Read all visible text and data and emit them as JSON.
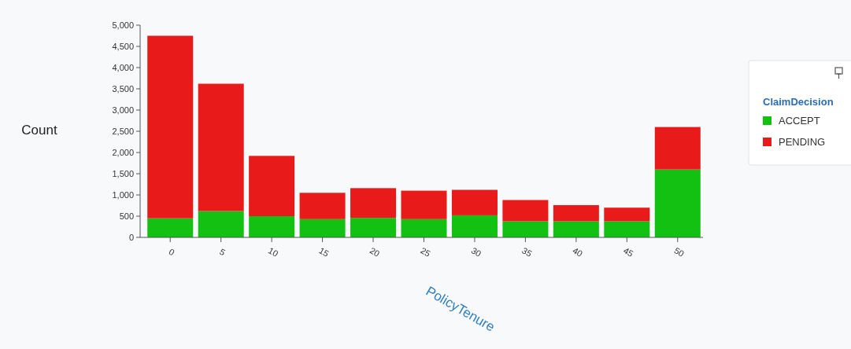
{
  "chart_data": {
    "type": "bar",
    "stacked": true,
    "xlabel": "PolicyTenure",
    "ylabel": "Count",
    "legend_title": "ClaimDecision",
    "legend": "right",
    "categories": [
      "0",
      "5",
      "10",
      "15",
      "20",
      "25",
      "30",
      "35",
      "40",
      "45",
      "50"
    ],
    "series": [
      {
        "name": "ACCEPT",
        "color": "#13c113",
        "values": [
          450,
          620,
          500,
          430,
          460,
          430,
          520,
          380,
          380,
          380,
          1600
        ]
      },
      {
        "name": "PENDING",
        "color": "#e81a1a",
        "values": [
          4300,
          3000,
          1420,
          620,
          700,
          670,
          600,
          500,
          380,
          320,
          1000
        ]
      }
    ],
    "ylim": [
      0,
      5000
    ],
    "yticks": [
      {
        "value": 0,
        "label": "0"
      },
      {
        "value": 500,
        "label": "500"
      },
      {
        "value": 1000,
        "label": "1,000"
      },
      {
        "value": 1500,
        "label": "1,500"
      },
      {
        "value": 2000,
        "label": "2,000"
      },
      {
        "value": 2500,
        "label": "2,500"
      },
      {
        "value": 3000,
        "label": "3,000"
      },
      {
        "value": 3500,
        "label": "3,500"
      },
      {
        "value": 4000,
        "label": "4,000"
      },
      {
        "value": 4500,
        "label": "4,500"
      },
      {
        "value": 5000,
        "label": "5,000"
      }
    ],
    "grid": false
  }
}
